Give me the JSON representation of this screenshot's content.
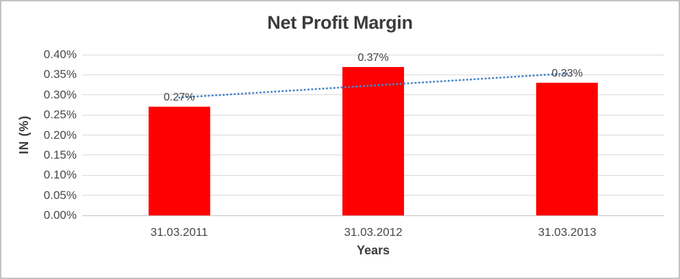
{
  "window": {
    "background": "#ffffff",
    "border_color": "#c3c3c3"
  },
  "chart_data": {
    "type": "bar",
    "title": "Net Profit Margin",
    "xlabel": "Years",
    "ylabel": "IN (%)",
    "categories": [
      "31.03.2011",
      "31.03.2012",
      "31.03.2013"
    ],
    "values": [
      0.27,
      0.37,
      0.33
    ],
    "data_labels": [
      "0.27%",
      "0.37%",
      "0.33%"
    ],
    "ylim": [
      0,
      0.4
    ],
    "y_ticks": [
      {
        "value": 0.4,
        "label": "0.40%"
      },
      {
        "value": 0.35,
        "label": "0.35%"
      },
      {
        "value": 0.3,
        "label": "0.30%"
      },
      {
        "value": 0.25,
        "label": "0.25%"
      },
      {
        "value": 0.2,
        "label": "0.20%"
      },
      {
        "value": 0.15,
        "label": "0.15%"
      },
      {
        "value": 0.1,
        "label": "0.10%"
      },
      {
        "value": 0.05,
        "label": "0.05%"
      },
      {
        "value": 0.0,
        "label": "0.00%"
      }
    ],
    "grid": true,
    "legend": null,
    "bar_color": "#ff0000",
    "gridline_color": "#d9d9d9",
    "axis_line_color": "#c3c3c3",
    "text_color": "#474747",
    "title_color": "#3b3b3b",
    "trendline": {
      "type": "linear",
      "style": "dotted",
      "color": "#4a86c8"
    }
  }
}
